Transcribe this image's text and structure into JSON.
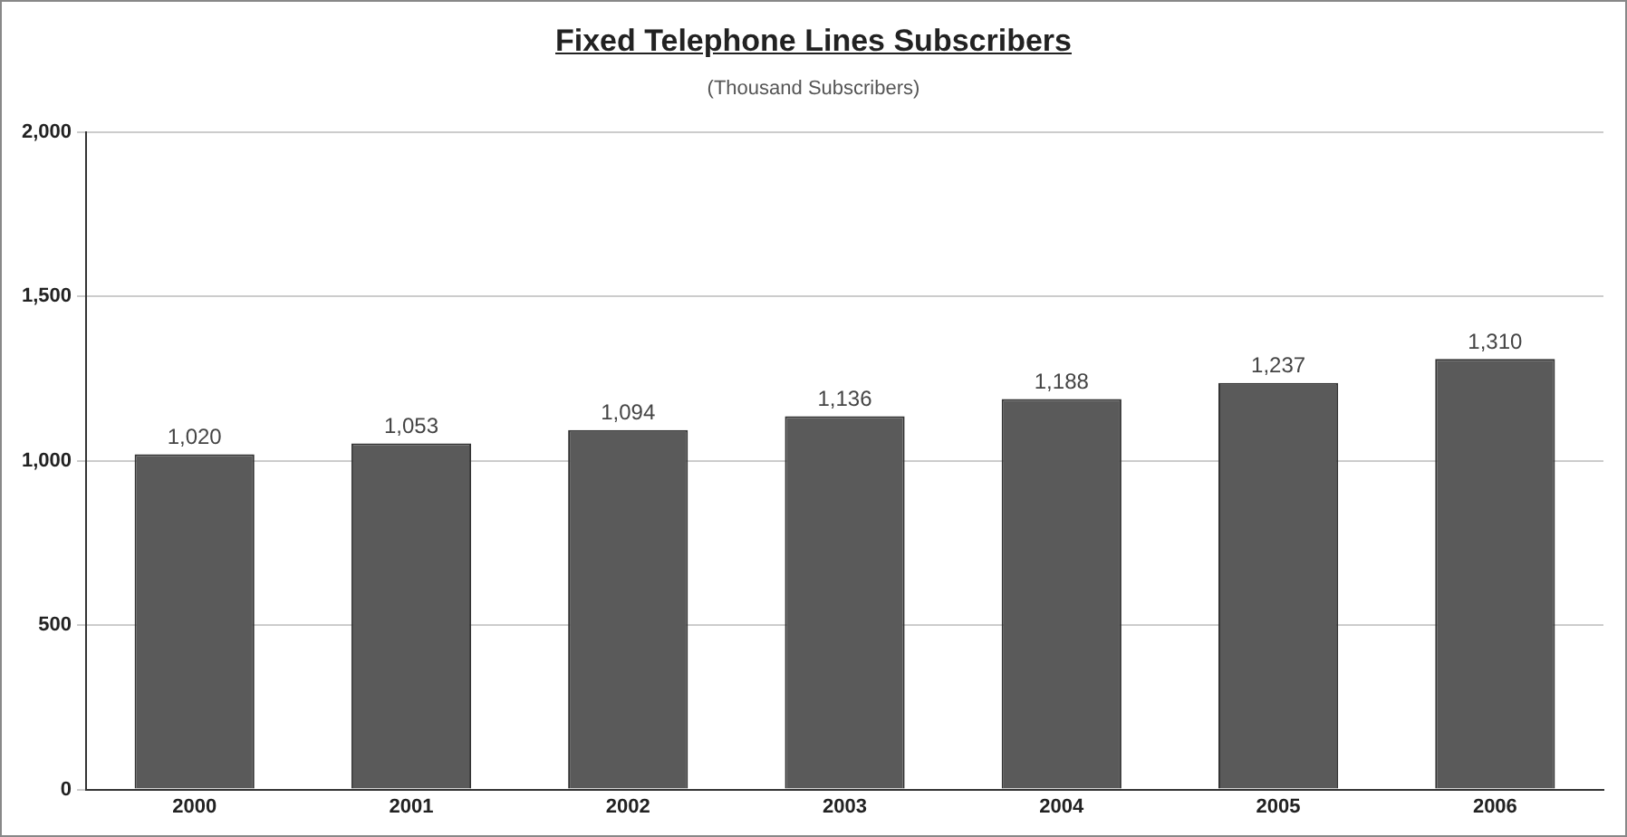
{
  "chart_data": {
    "type": "bar",
    "title": "Fixed Telephone Lines Subscribers",
    "subtitle": "(Thousand Subscribers)",
    "categories": [
      "2000",
      "2001",
      "2002",
      "2003",
      "2004",
      "2005",
      "2006"
    ],
    "values": [
      1020,
      1053,
      1094,
      1136,
      1188,
      1237,
      1310
    ],
    "value_labels": [
      "1,020",
      "1,053",
      "1,094",
      "1,136",
      "1,188",
      "1,237",
      "1,310"
    ],
    "color": "#5a5a5a",
    "ylim": [
      0,
      2000
    ],
    "yticks": [
      {
        "value": 0,
        "label": "0"
      },
      {
        "value": 500,
        "label": "500"
      },
      {
        "value": 1000,
        "label": "1,000"
      },
      {
        "value": 1500,
        "label": "1,500"
      },
      {
        "value": 2000,
        "label": "2,000"
      }
    ],
    "grid": "y"
  }
}
